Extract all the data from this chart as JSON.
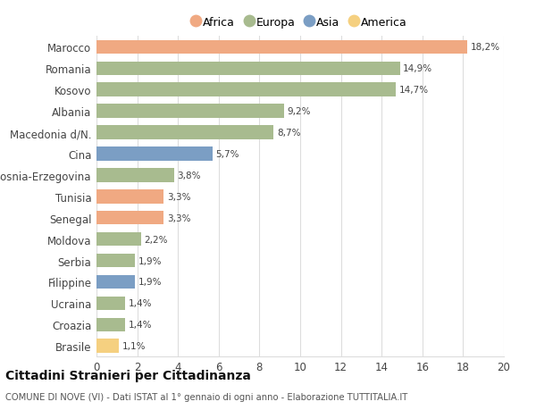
{
  "countries": [
    "Marocco",
    "Romania",
    "Kosovo",
    "Albania",
    "Macedonia d/N.",
    "Cina",
    "Bosnia-Erzegovina",
    "Tunisia",
    "Senegal",
    "Moldova",
    "Serbia",
    "Filippine",
    "Ucraina",
    "Croazia",
    "Brasile"
  ],
  "values": [
    18.2,
    14.9,
    14.7,
    9.2,
    8.7,
    5.7,
    3.8,
    3.3,
    3.3,
    2.2,
    1.9,
    1.9,
    1.4,
    1.4,
    1.1
  ],
  "labels": [
    "18,2%",
    "14,9%",
    "14,7%",
    "9,2%",
    "8,7%",
    "5,7%",
    "3,8%",
    "3,3%",
    "3,3%",
    "2,2%",
    "1,9%",
    "1,9%",
    "1,4%",
    "1,4%",
    "1,1%"
  ],
  "continents": [
    "Africa",
    "Europa",
    "Europa",
    "Europa",
    "Europa",
    "Asia",
    "Europa",
    "Africa",
    "Africa",
    "Europa",
    "Europa",
    "Asia",
    "Europa",
    "Europa",
    "America"
  ],
  "colors": {
    "Africa": "#F0A982",
    "Europa": "#A8BB8F",
    "Asia": "#7B9EC4",
    "America": "#F5D080"
  },
  "legend_order": [
    "Africa",
    "Europa",
    "Asia",
    "America"
  ],
  "title": "Cittadini Stranieri per Cittadinanza",
  "subtitle": "COMUNE DI NOVE (VI) - Dati ISTAT al 1° gennaio di ogni anno - Elaborazione TUTTITALIA.IT",
  "xlim": [
    0,
    20
  ],
  "xticks": [
    0,
    2,
    4,
    6,
    8,
    10,
    12,
    14,
    16,
    18,
    20
  ],
  "background_color": "#ffffff",
  "grid_color": "#dddddd"
}
